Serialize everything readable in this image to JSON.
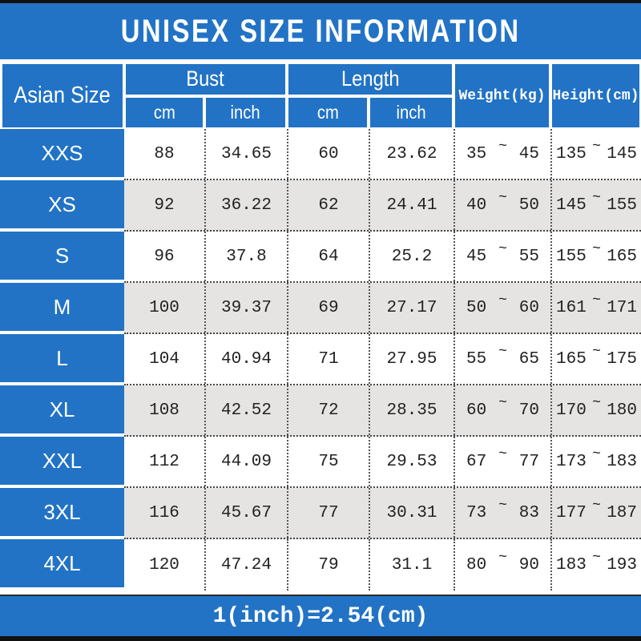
{
  "title": "UNISEX SIZE INFORMATION",
  "footer_note": "1(inch)=2.54(cm)",
  "tilde": "~",
  "colors": {
    "blue": "#2273c5",
    "row_alt": "#e5e4e2",
    "bar_black": "#111111",
    "text_dark": "#222222"
  },
  "chart_data": {
    "type": "table",
    "title": "UNISEX SIZE INFORMATION",
    "header": {
      "size_label": "Asian Size",
      "bust_label": "Bust",
      "length_label": "Length",
      "cm_label": "cm",
      "inch_label": "inch",
      "weight_label": "Weight(kg)",
      "height_label": "Height(cm)"
    },
    "rows": [
      {
        "size": "XXS",
        "bust_cm": "88",
        "bust_inch": "34.65",
        "length_cm": "60",
        "length_inch": "23.62",
        "weight_min": "35",
        "weight_max": "45",
        "height_min": "135",
        "height_max": "145"
      },
      {
        "size": "XS",
        "bust_cm": "92",
        "bust_inch": "36.22",
        "length_cm": "62",
        "length_inch": "24.41",
        "weight_min": "40",
        "weight_max": "50",
        "height_min": "145",
        "height_max": "155"
      },
      {
        "size": "S",
        "bust_cm": "96",
        "bust_inch": "37.8",
        "length_cm": "64",
        "length_inch": "25.2",
        "weight_min": "45",
        "weight_max": "55",
        "height_min": "155",
        "height_max": "165"
      },
      {
        "size": "M",
        "bust_cm": "100",
        "bust_inch": "39.37",
        "length_cm": "69",
        "length_inch": "27.17",
        "weight_min": "50",
        "weight_max": "60",
        "height_min": "161",
        "height_max": "171"
      },
      {
        "size": "L",
        "bust_cm": "104",
        "bust_inch": "40.94",
        "length_cm": "71",
        "length_inch": "27.95",
        "weight_min": "55",
        "weight_max": "65",
        "height_min": "165",
        "height_max": "175"
      },
      {
        "size": "XL",
        "bust_cm": "108",
        "bust_inch": "42.52",
        "length_cm": "72",
        "length_inch": "28.35",
        "weight_min": "60",
        "weight_max": "70",
        "height_min": "170",
        "height_max": "180"
      },
      {
        "size": "XXL",
        "bust_cm": "112",
        "bust_inch": "44.09",
        "length_cm": "75",
        "length_inch": "29.53",
        "weight_min": "67",
        "weight_max": "77",
        "height_min": "173",
        "height_max": "183"
      },
      {
        "size": "3XL",
        "bust_cm": "116",
        "bust_inch": "45.67",
        "length_cm": "77",
        "length_inch": "30.31",
        "weight_min": "73",
        "weight_max": "83",
        "height_min": "177",
        "height_max": "187"
      },
      {
        "size": "4XL",
        "bust_cm": "120",
        "bust_inch": "47.24",
        "length_cm": "79",
        "length_inch": "31.1",
        "weight_min": "80",
        "weight_max": "90",
        "height_min": "183",
        "height_max": "193"
      }
    ]
  }
}
